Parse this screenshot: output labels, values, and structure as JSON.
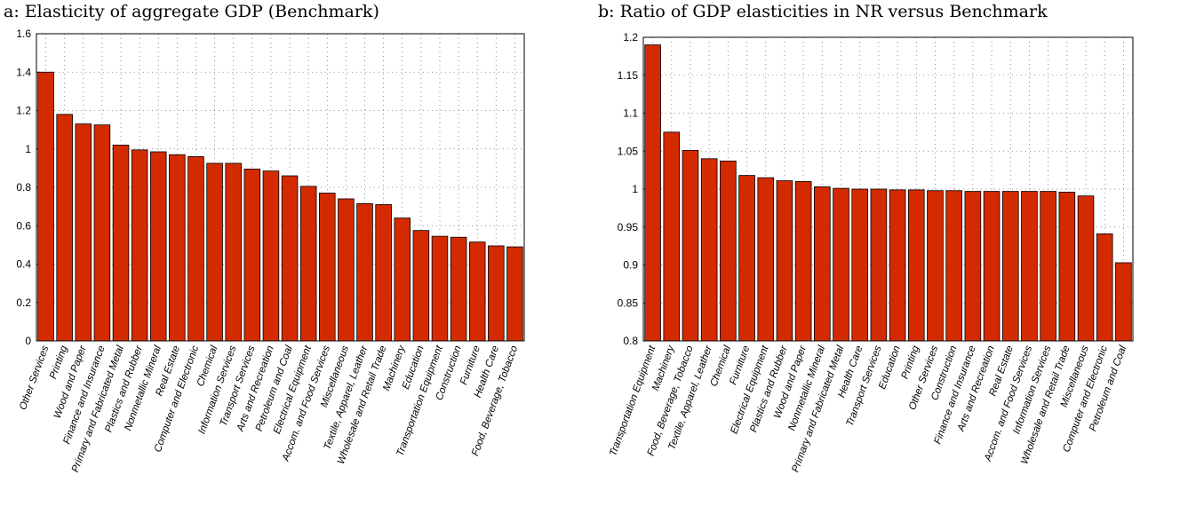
{
  "chart_data": [
    {
      "type": "bar",
      "title": "a: Elasticity of aggregate GDP (Benchmark)",
      "xlabel": "",
      "ylabel": "",
      "ylim": [
        0,
        1.6
      ],
      "yticks": [
        "0",
        "0.2",
        "0.4",
        "0.6",
        "0.8",
        "1",
        "1.2",
        "1.4",
        "1.6"
      ],
      "grid": true,
      "bar_color": "#d42a00",
      "categories": [
        "Other Services",
        "Printing",
        "Wood and Paper",
        "Finance and Insurance",
        "Primary and Fabricated Metal",
        "Plastics and Rubber",
        "Nonmetallic Mineral",
        "Real Estate",
        "Computer and Electronic",
        "Chemical",
        "Information Services",
        "Transport Services",
        "Arts and Recreation",
        "Petroleum and Coal",
        "Electrical Equipment",
        "Accom. and Food Services",
        "Miscellaneous",
        "Textile, Apparel, Leather",
        "Wholesale and Retail Trade",
        "Machinery",
        "Education",
        "Transportation Equipment",
        "Construction",
        "Furniture",
        "Health Care",
        "Food, Beverage, Tobacco"
      ],
      "values": [
        1.4,
        1.18,
        1.13,
        1.125,
        1.02,
        0.995,
        0.985,
        0.97,
        0.96,
        0.925,
        0.925,
        0.895,
        0.885,
        0.86,
        0.805,
        0.77,
        0.74,
        0.715,
        0.71,
        0.64,
        0.575,
        0.545,
        0.54,
        0.515,
        0.495,
        0.49
      ]
    },
    {
      "type": "bar",
      "title": "b: Ratio of GDP elasticities in NR versus Benchmark",
      "xlabel": "",
      "ylabel": "",
      "ylim": [
        0.8,
        1.2
      ],
      "yticks": [
        "0.8",
        "0.85",
        "0.9",
        "0.95",
        "1",
        "1.05",
        "1.1",
        "1.15",
        "1.2"
      ],
      "grid": true,
      "bar_color": "#d42a00",
      "categories": [
        "Transportation Equipment",
        "Machinery",
        "Food, Beverage, Tobacco",
        "Textile, Apparel, Leather",
        "Chemical",
        "Furniture",
        "Electrical Equipment",
        "Plastics and Rubber",
        "Wood and Paper",
        "Nonmetallic Mineral",
        "Primary and Fabricated Metal",
        "Health Care",
        "Transport Services",
        "Education",
        "Printing",
        "Other Services",
        "Construction",
        "Finance and Insurance",
        "Arts and Recreation",
        "Real Estate",
        "Accom. and Food Services",
        "Information Services",
        "Wholesale and Retail Trade",
        "Miscellaneous",
        "Computer and Electronic",
        "Petroleum and Coal"
      ],
      "values": [
        1.19,
        1.075,
        1.051,
        1.04,
        1.037,
        1.018,
        1.015,
        1.011,
        1.01,
        1.003,
        1.001,
        1.0,
        1.0,
        0.999,
        0.999,
        0.998,
        0.998,
        0.997,
        0.997,
        0.997,
        0.997,
        0.997,
        0.996,
        0.991,
        0.941,
        0.903
      ]
    }
  ]
}
